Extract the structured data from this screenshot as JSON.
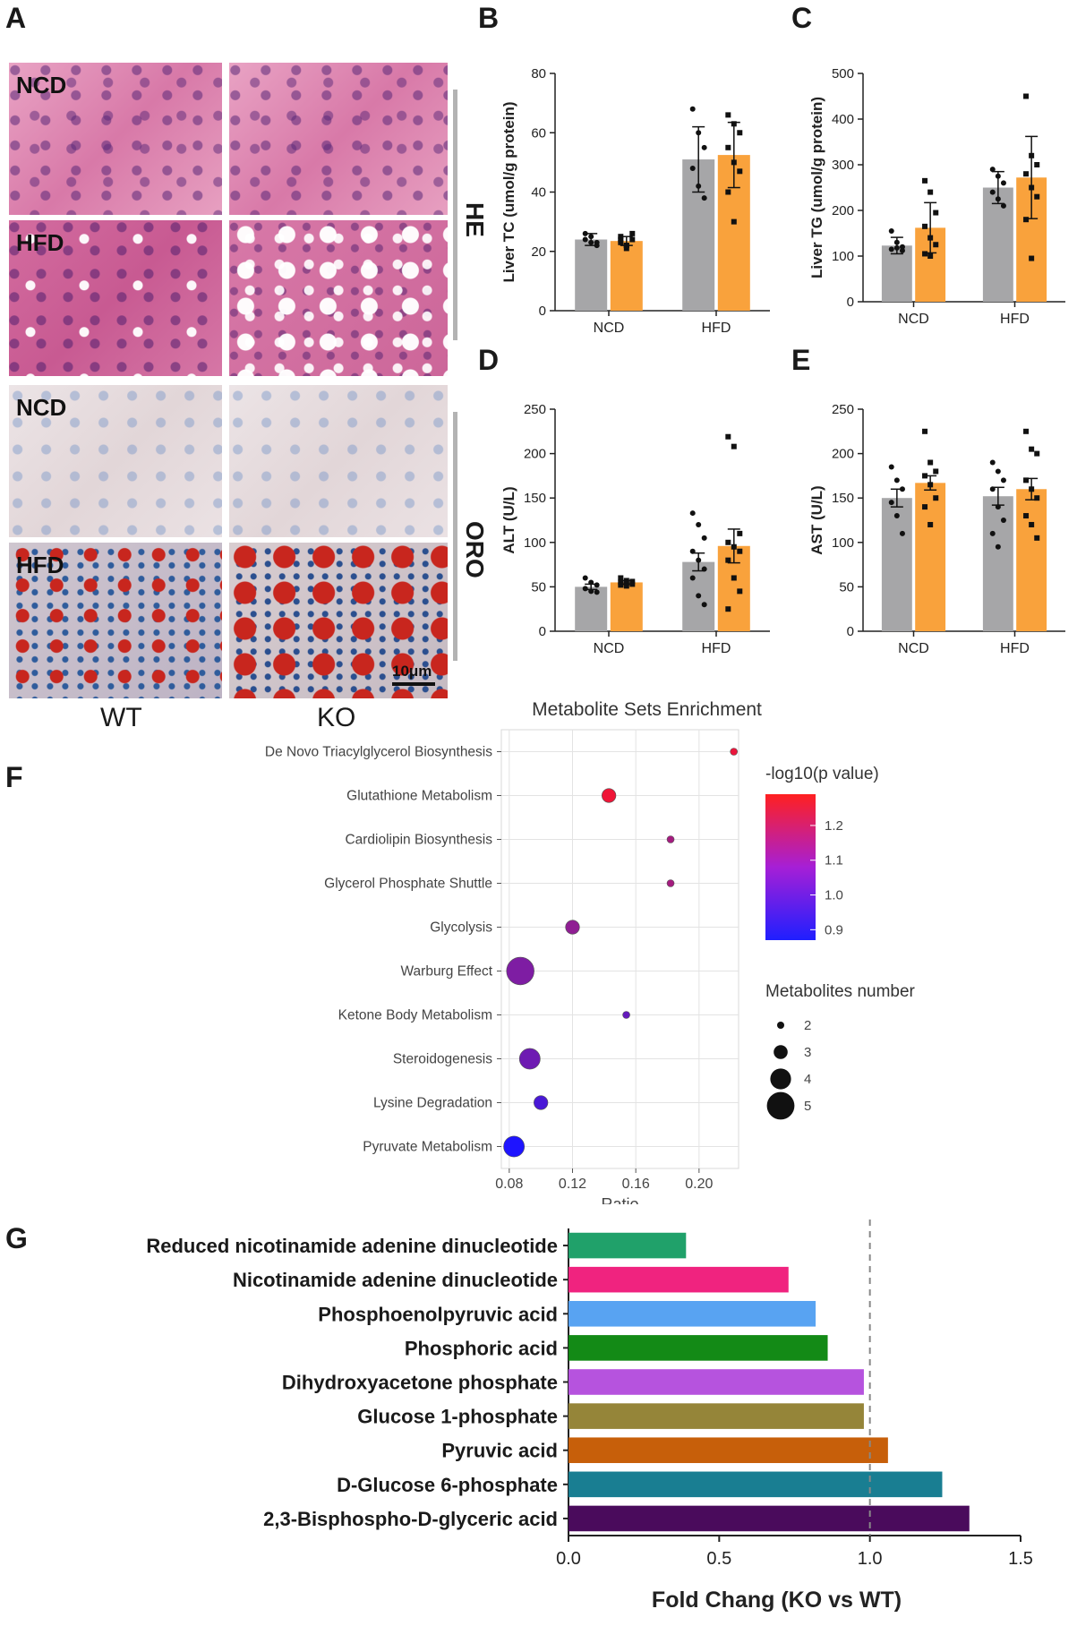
{
  "panels": {
    "A": "A",
    "B": "B",
    "C": "C",
    "D": "D",
    "E": "E",
    "F": "F",
    "G": "G"
  },
  "histology": {
    "rows": [
      "NCD",
      "HFD",
      "NCD",
      "HFD"
    ],
    "stains": [
      "HE",
      "ORO"
    ],
    "genotypes": [
      "WT",
      "KO"
    ],
    "scale_bar": "10μm"
  },
  "colors": {
    "wt": "#a6a6a8",
    "ko": "#f9a23c"
  },
  "chart_data": [
    {
      "id": "B",
      "type": "bar",
      "ylabel": "Liver TC (umol/g protein)",
      "categories": [
        "NCD",
        "HFD"
      ],
      "ylim": [
        0,
        80
      ],
      "yticks": [
        0,
        20,
        40,
        60,
        80
      ],
      "series": [
        {
          "name": "WT",
          "values": [
            24,
            51
          ],
          "err": [
            2,
            11
          ],
          "points": [
            [
              26,
              23,
              22,
              24,
              25,
              23
            ],
            [
              68,
              60,
              55,
              48,
              42,
              38
            ]
          ]
        },
        {
          "name": "KO",
          "values": [
            23.5,
            52.5
          ],
          "err": [
            1.5,
            11
          ],
          "points": [
            [
              25,
              22,
              24,
              23,
              21,
              26,
              24,
              22
            ],
            [
              66,
              63,
              60,
              55,
              50,
              47,
              40,
              30
            ]
          ]
        }
      ]
    },
    {
      "id": "C",
      "type": "bar",
      "ylabel": "Liver TG (umol/g protein)",
      "categories": [
        "NCD",
        "HFD"
      ],
      "ylim": [
        0,
        500
      ],
      "yticks": [
        0,
        100,
        200,
        300,
        400,
        500
      ],
      "series": [
        {
          "name": "WT",
          "values": [
            123,
            250
          ],
          "err": [
            18,
            35
          ],
          "points": [
            [
              155,
              130,
              120,
              115,
              118,
              112
            ],
            [
              290,
              275,
              260,
              240,
              225,
              210
            ]
          ]
        },
        {
          "name": "KO",
          "values": [
            162,
            272
          ],
          "err": [
            55,
            90
          ],
          "points": [
            [
              265,
              240,
              195,
              165,
              140,
              125,
              105,
              100
            ],
            [
              450,
              320,
              300,
              280,
              250,
              230,
              180,
              95
            ]
          ]
        }
      ]
    },
    {
      "id": "D",
      "type": "bar",
      "ylabel": "ALT (U/L)",
      "categories": [
        "NCD",
        "HFD"
      ],
      "ylim": [
        0,
        250
      ],
      "yticks": [
        0,
        50,
        100,
        150,
        200,
        250
      ],
      "series": [
        {
          "name": "WT",
          "values": [
            50,
            78
          ],
          "err": [
            3,
            10
          ],
          "points": [
            [
              60,
              55,
              52,
              48,
              45,
              44
            ],
            [
              133,
              120,
              105,
              90,
              80,
              70,
              60,
              40,
              30
            ]
          ]
        },
        {
          "name": "KO",
          "values": [
            55,
            96
          ],
          "err": [
            2,
            19
          ],
          "points": [
            [
              60,
              57,
              56,
              55,
              54,
              53,
              52,
              51
            ],
            [
              219,
              208,
              110,
              100,
              95,
              90,
              80,
              60,
              45,
              25
            ]
          ]
        }
      ]
    },
    {
      "id": "E",
      "type": "bar",
      "ylabel": "AST (U/L)",
      "categories": [
        "NCD",
        "HFD"
      ],
      "ylim": [
        0,
        250
      ],
      "yticks": [
        0,
        50,
        100,
        150,
        200,
        250
      ],
      "series": [
        {
          "name": "WT",
          "values": [
            150,
            152
          ],
          "err": [
            10,
            10
          ],
          "points": [
            [
              185,
              170,
              160,
              145,
              130,
              110
            ],
            [
              190,
              180,
              170,
              160,
              140,
              125,
              110,
              95
            ]
          ]
        },
        {
          "name": "KO",
          "values": [
            167,
            160
          ],
          "err": [
            8,
            12
          ],
          "points": [
            [
              225,
              190,
              180,
              175,
              165,
              150,
              140,
              120
            ],
            [
              225,
              205,
              200,
              170,
              160,
              150,
              130,
              120,
              105
            ]
          ]
        }
      ]
    },
    {
      "id": "F",
      "type": "scatter",
      "title": "Metabolite Sets Enrichment",
      "xlabel": "Ratio",
      "xlim": [
        0.075,
        0.225
      ],
      "xticks": [
        0.08,
        0.12,
        0.16,
        0.2
      ],
      "xtick_labels": [
        "0.08",
        "0.12",
        "0.16",
        "0.20"
      ],
      "colorbar_title": "-log10(p value)",
      "colorbar_ticks": [
        1.2,
        1.1,
        1.0,
        0.9
      ],
      "colorbar_range": [
        0.87,
        1.29
      ],
      "size_legend_title": "Metabolites number",
      "size_legend": [
        2,
        3,
        4,
        5
      ],
      "points": [
        {
          "label": "De Novo Triacylglycerol Biosynthesis",
          "ratio": 0.222,
          "n": 2,
          "logp": 1.25
        },
        {
          "label": "Glutathione Metabolism",
          "ratio": 0.143,
          "n": 3,
          "logp": 1.26
        },
        {
          "label": "Cardiolipin Biosynthesis",
          "ratio": 0.182,
          "n": 2,
          "logp": 1.12
        },
        {
          "label": "Glycerol Phosphate Shuttle",
          "ratio": 0.182,
          "n": 2,
          "logp": 1.12
        },
        {
          "label": "Glycolysis",
          "ratio": 0.12,
          "n": 3,
          "logp": 1.08
        },
        {
          "label": "Warburg Effect",
          "ratio": 0.087,
          "n": 5,
          "logp": 1.05
        },
        {
          "label": "Ketone Body Metabolism",
          "ratio": 0.154,
          "n": 2,
          "logp": 1.0
        },
        {
          "label": "Steroidogenesis",
          "ratio": 0.093,
          "n": 4,
          "logp": 1.02
        },
        {
          "label": "Lysine Degradation",
          "ratio": 0.1,
          "n": 3,
          "logp": 0.95
        },
        {
          "label": "Pyruvate Metabolism",
          "ratio": 0.083,
          "n": 4,
          "logp": 0.87
        }
      ]
    },
    {
      "id": "G",
      "type": "bar",
      "orientation": "horizontal",
      "xlabel": "Fold Chang (KO vs WT)",
      "xlim": [
        0,
        1.5
      ],
      "xticks": [
        0,
        0.5,
        1,
        1.5
      ],
      "xtick_labels": [
        "0.0",
        "0.5",
        "1.0",
        "1.5"
      ],
      "reference_line": 1.0,
      "categories": [
        "Reduced nicotinamide adenine dinucleotide",
        "Nicotinamide adenine dinucleotide",
        "Phosphoenolpyruvic acid",
        "Phosphoric acid",
        "Dihydroxyacetone phosphate",
        "Glucose 1-phosphate",
        "Pyruvic acid",
        "D-Glucose 6-phosphate",
        "2,3-Bisphospho-D-glyceric acid"
      ],
      "values": [
        0.39,
        0.73,
        0.82,
        0.86,
        0.98,
        0.98,
        1.06,
        1.24,
        1.33
      ],
      "bar_colors": [
        "#20a16a",
        "#f0237f",
        "#58a3f2",
        "#138a16",
        "#b653de",
        "#958539",
        "#c75f0a",
        "#197e92",
        "#4a0b5c"
      ]
    }
  ]
}
